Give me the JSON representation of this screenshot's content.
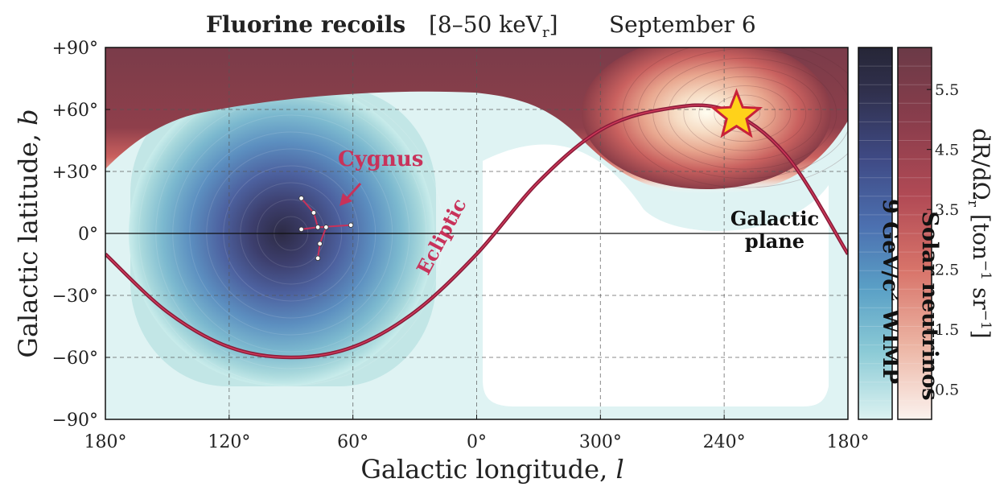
{
  "title": {
    "bold": "Fluorine recoils",
    "range_prefix": "[8–50 keV",
    "range_sub": "r",
    "range_suffix": "]",
    "date": "September 6"
  },
  "axes": {
    "xlabel": "Galactic longitude, ",
    "xlabel_var": "l",
    "ylabel": "Galactic latitude, ",
    "ylabel_var": "b"
  },
  "chart_data": {
    "type": "heatmap",
    "x_ticks": [
      "180°",
      "120°",
      "60°",
      "0°",
      "300°",
      "240°",
      "180°"
    ],
    "x_tick_values": [
      180,
      120,
      60,
      0,
      -60,
      -120,
      -180
    ],
    "y_ticks": [
      "+90°",
      "+60°",
      "+30°",
      "0°",
      "−30°",
      "−60°",
      "−90°"
    ],
    "y_tick_values": [
      90,
      60,
      30,
      0,
      -30,
      -60,
      -90
    ],
    "xlim": [
      180,
      -180
    ],
    "ylim": [
      -90,
      90
    ],
    "grid": true,
    "series": [
      {
        "name": "9 GeV/c² WIMP",
        "kind": "filled-contours",
        "peak": {
          "l": 90,
          "b": 0
        },
        "colormap": "blue"
      },
      {
        "name": "Solar neutrinos",
        "kind": "filled-contours",
        "peak": {
          "l": -130,
          "b": 58
        },
        "colormap": "red"
      }
    ],
    "ecliptic": {
      "label": "Ecliptic",
      "points": [
        {
          "l": 180,
          "b": -10
        },
        {
          "l": 150,
          "b": -38
        },
        {
          "l": 120,
          "b": -55
        },
        {
          "l": 90,
          "b": -60
        },
        {
          "l": 60,
          "b": -55
        },
        {
          "l": 30,
          "b": -38
        },
        {
          "l": 0,
          "b": -10
        },
        {
          "l": -30,
          "b": 25
        },
        {
          "l": -60,
          "b": 50
        },
        {
          "l": -90,
          "b": 60
        },
        {
          "l": -120,
          "b": 60
        },
        {
          "l": -150,
          "b": 38
        },
        {
          "l": -180,
          "b": -10
        }
      ]
    },
    "galactic_plane": {
      "label_line1": "Galactic",
      "label_line2": "plane",
      "b": 0
    },
    "cygnus": {
      "label": "Cygnus",
      "stars": [
        {
          "l": 85,
          "b": 17
        },
        {
          "l": 79,
          "b": 10
        },
        {
          "l": 77,
          "b": 3
        },
        {
          "l": 85,
          "b": 2
        },
        {
          "l": 73,
          "b": 3
        },
        {
          "l": 76,
          "b": -5
        },
        {
          "l": 77,
          "b": -12
        },
        {
          "l": 61,
          "b": 4
        }
      ]
    },
    "sun_marker": {
      "l": -126,
      "b": 57,
      "symbol": "star",
      "color": "#ffd21a"
    },
    "colorbar": {
      "label": "dR/dΩ",
      "label_sub": "r",
      "units_open": "[ton",
      "units_exp1": "−1",
      "units_mid": " sr",
      "units_exp2": "−1",
      "units_close": "]",
      "ticks": [
        "5.5",
        "4.5",
        "3.5",
        "2.5",
        "1.5",
        "0.5"
      ],
      "tick_values": [
        5.5,
        4.5,
        3.5,
        2.5,
        1.5,
        0.5
      ],
      "range": [
        0,
        6.2
      ]
    },
    "colorbar_wimp_label": {
      "prefix": "9 GeV/c",
      "sup": "2",
      "suffix": " WIMP"
    },
    "colorbar_neutrino_label": "Solar neutrinos"
  }
}
